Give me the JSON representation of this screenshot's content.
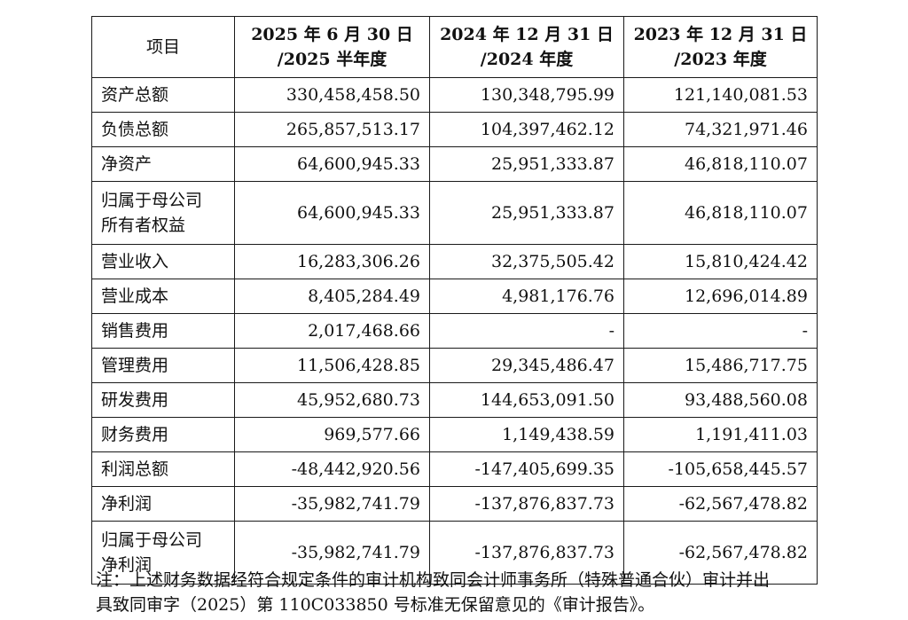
{
  "table": {
    "headers": [
      {
        "line1": "项目",
        "line2": ""
      },
      {
        "line1": "2025 年 6 月 30 日",
        "line2": "/2025 半年度"
      },
      {
        "line1": "2024 年 12 月 31 日",
        "line2": "/2024 年度"
      },
      {
        "line1": "2023 年 12 月 31 日",
        "line2": "/2023 年度"
      }
    ],
    "rows": [
      {
        "label": [
          "资产总额"
        ],
        "v2025": "330,458,458.50",
        "v2024": "130,348,795.99",
        "v2023": "121,140,081.53"
      },
      {
        "label": [
          "负债总额"
        ],
        "v2025": "265,857,513.17",
        "v2024": "104,397,462.12",
        "v2023": "74,321,971.46"
      },
      {
        "label": [
          "净资产"
        ],
        "v2025": "64,600,945.33",
        "v2024": "25,951,333.87",
        "v2023": "46,818,110.07"
      },
      {
        "label": [
          "归属于母公司",
          "所有者权益"
        ],
        "v2025": "64,600,945.33",
        "v2024": "25,951,333.87",
        "v2023": "46,818,110.07"
      },
      {
        "label": [
          "营业收入"
        ],
        "v2025": "16,283,306.26",
        "v2024": "32,375,505.42",
        "v2023": "15,810,424.42"
      },
      {
        "label": [
          "营业成本"
        ],
        "v2025": "8,405,284.49",
        "v2024": "4,981,176.76",
        "v2023": "12,696,014.89"
      },
      {
        "label": [
          "销售费用"
        ],
        "v2025": "2,017,468.66",
        "v2024": "-",
        "v2023": "-"
      },
      {
        "label": [
          "管理费用"
        ],
        "v2025": "11,506,428.85",
        "v2024": "29,345,486.47",
        "v2023": "15,486,717.75"
      },
      {
        "label": [
          "研发费用"
        ],
        "v2025": "45,952,680.73",
        "v2024": "144,653,091.50",
        "v2023": "93,488,560.08"
      },
      {
        "label": [
          "财务费用"
        ],
        "v2025": "969,577.66",
        "v2024": "1,149,438.59",
        "v2023": "1,191,411.03"
      },
      {
        "label": [
          "利润总额"
        ],
        "v2025": "-48,442,920.56",
        "v2024": "-147,405,699.35",
        "v2023": "-105,658,445.57"
      },
      {
        "label": [
          "净利润"
        ],
        "v2025": "-35,982,741.79",
        "v2024": "-137,876,837.73",
        "v2023": "-62,567,478.82"
      },
      {
        "label": [
          "归属于母公司",
          "净利润"
        ],
        "v2025": "-35,982,741.79",
        "v2024": "-137,876,837.73",
        "v2023": "-62,567,478.82"
      }
    ]
  },
  "note": {
    "line1": "注：上述财务数据经符合规定条件的审计机构致同会计师事务所（特殊普通合伙）审计并出",
    "line2": "具致同审字（2025）第 110C033850 号标准无保留意见的《审计报告》。"
  }
}
